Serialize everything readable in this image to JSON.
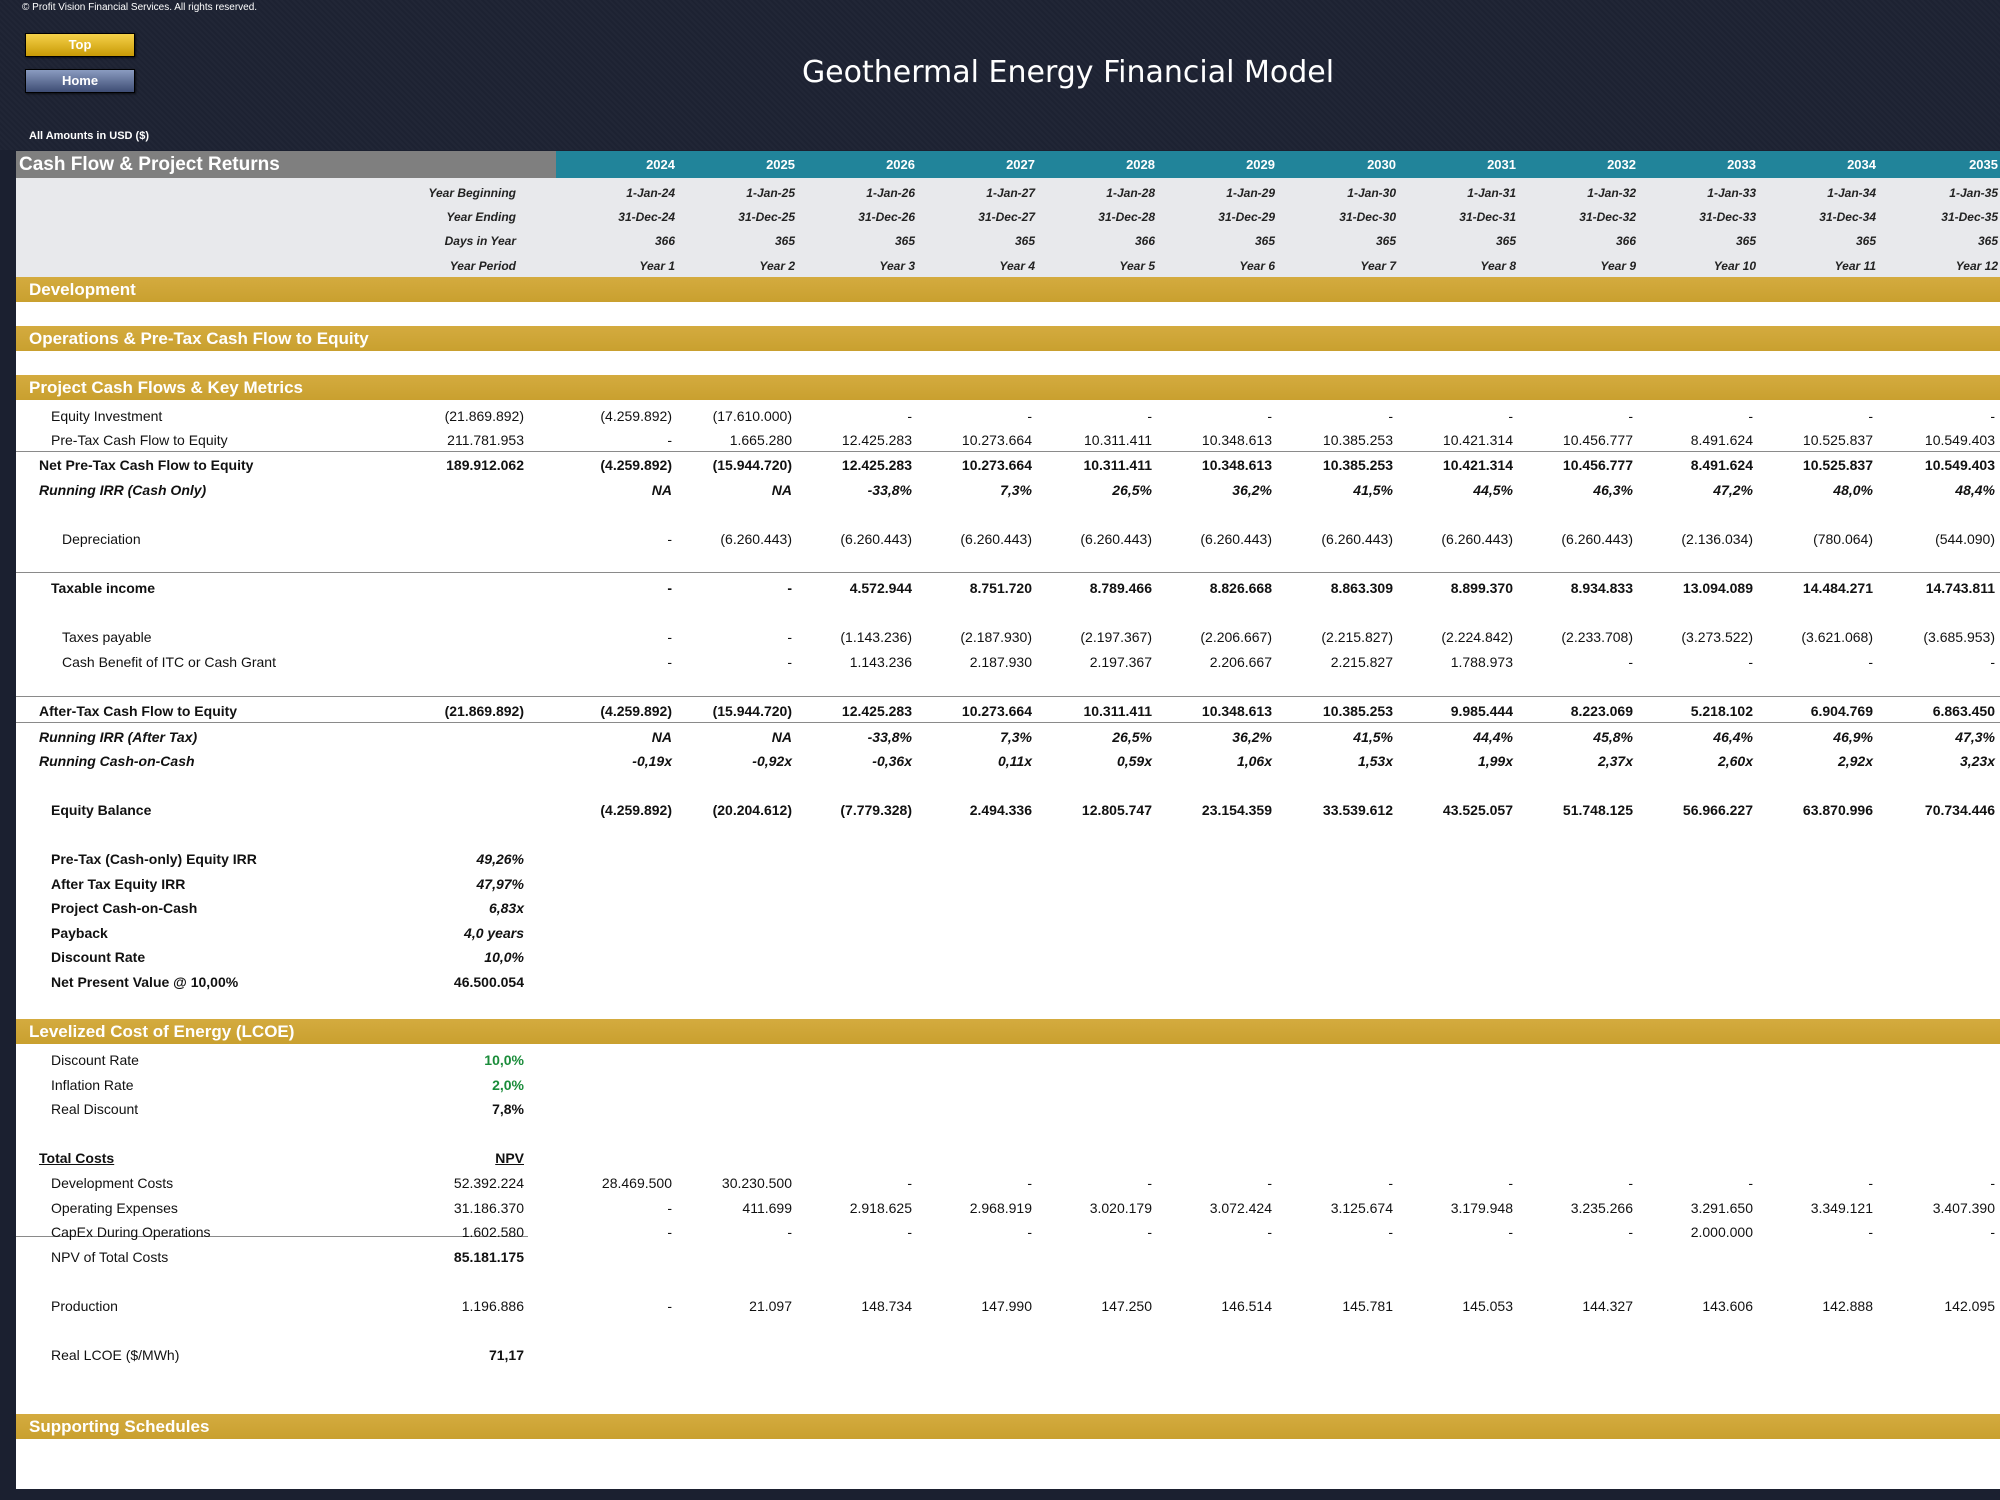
{
  "copyright": "© Profit Vision Financial Services. All rights reserved.",
  "nav": {
    "top_label": "Top",
    "home_label": "Home"
  },
  "title": "Geothermal Energy Financial Model",
  "amounts_note": "All Amounts in  USD ($)",
  "header": {
    "title": "Cash Flow & Project Returns",
    "years": [
      "2024",
      "2025",
      "2026",
      "2027",
      "2028",
      "2029",
      "2030",
      "2031",
      "2032",
      "2033",
      "2034",
      "2035"
    ],
    "date_labels": {
      "begin": "Year Beginning",
      "end": "Year Ending",
      "days": "Days in Year",
      "period": "Year Period"
    },
    "year_beginning": [
      "1-Jan-24",
      "1-Jan-25",
      "1-Jan-26",
      "1-Jan-27",
      "1-Jan-28",
      "1-Jan-29",
      "1-Jan-30",
      "1-Jan-31",
      "1-Jan-32",
      "1-Jan-33",
      "1-Jan-34",
      "1-Jan-35"
    ],
    "year_ending": [
      "31-Dec-24",
      "31-Dec-25",
      "31-Dec-26",
      "31-Dec-27",
      "31-Dec-28",
      "31-Dec-29",
      "31-Dec-30",
      "31-Dec-31",
      "31-Dec-32",
      "31-Dec-33",
      "31-Dec-34",
      "31-Dec-35"
    ],
    "days_in_year": [
      "366",
      "365",
      "365",
      "365",
      "366",
      "365",
      "365",
      "365",
      "366",
      "365",
      "365",
      "365"
    ],
    "year_period": [
      "Year 1",
      "Year 2",
      "Year 3",
      "Year 4",
      "Year 5",
      "Year 6",
      "Year 7",
      "Year 8",
      "Year 9",
      "Year 10",
      "Year 11",
      "Year 12"
    ]
  },
  "sections": {
    "development": "Development",
    "operations": "Operations & Pre-Tax Cash Flow to Equity",
    "project_cash_flows": "Project Cash Flows & Key Metrics",
    "lcoe": "Levelized Cost of Energy (LCOE)",
    "supporting": "Supporting Schedules"
  },
  "rows": {
    "equity_investment": {
      "label": "Equity Investment",
      "total": "(21.869.892)",
      "values": [
        "(4.259.892)",
        "(17.610.000)",
        "-",
        "-",
        "-",
        "-",
        "-",
        "-",
        "-",
        "-",
        "-",
        "-"
      ]
    },
    "pretax_cf": {
      "label": "Pre-Tax Cash Flow to Equity",
      "total": "211.781.953",
      "values": [
        "-",
        "1.665.280",
        "12.425.283",
        "10.273.664",
        "10.311.411",
        "10.348.613",
        "10.385.253",
        "10.421.314",
        "10.456.777",
        "8.491.624",
        "10.525.837",
        "10.549.403"
      ]
    },
    "net_pretax_cf": {
      "label": "Net Pre-Tax Cash Flow to Equity",
      "total": "189.912.062",
      "values": [
        "(4.259.892)",
        "(15.944.720)",
        "12.425.283",
        "10.273.664",
        "10.311.411",
        "10.348.613",
        "10.385.253",
        "10.421.314",
        "10.456.777",
        "8.491.624",
        "10.525.837",
        "10.549.403"
      ]
    },
    "running_irr_cash": {
      "label": "Running IRR (Cash Only)",
      "total": "",
      "values": [
        "NA",
        "NA",
        "-33,8%",
        "7,3%",
        "26,5%",
        "36,2%",
        "41,5%",
        "44,5%",
        "46,3%",
        "47,2%",
        "48,0%",
        "48,4%"
      ]
    },
    "depreciation": {
      "label": "Depreciation",
      "total": "",
      "values": [
        "-",
        "(6.260.443)",
        "(6.260.443)",
        "(6.260.443)",
        "(6.260.443)",
        "(6.260.443)",
        "(6.260.443)",
        "(6.260.443)",
        "(6.260.443)",
        "(2.136.034)",
        "(780.064)",
        "(544.090)"
      ]
    },
    "taxable_income": {
      "label": "Taxable income",
      "total": "",
      "values": [
        "-",
        "-",
        "4.572.944",
        "8.751.720",
        "8.789.466",
        "8.826.668",
        "8.863.309",
        "8.899.370",
        "8.934.833",
        "13.094.089",
        "14.484.271",
        "14.743.811"
      ]
    },
    "taxes_payable": {
      "label": "Taxes payable",
      "total": "",
      "values": [
        "-",
        "-",
        "(1.143.236)",
        "(2.187.930)",
        "(2.197.367)",
        "(2.206.667)",
        "(2.215.827)",
        "(2.224.842)",
        "(2.233.708)",
        "(3.273.522)",
        "(3.621.068)",
        "(3.685.953)"
      ]
    },
    "itc_benefit": {
      "label": "Cash Benefit of ITC or Cash Grant",
      "total": "",
      "values": [
        "-",
        "-",
        "1.143.236",
        "2.187.930",
        "2.197.367",
        "2.206.667",
        "2.215.827",
        "1.788.973",
        "-",
        "-",
        "-",
        "-"
      ]
    },
    "aftertax_cf": {
      "label": "After-Tax Cash Flow to Equity",
      "total": "(21.869.892)",
      "values": [
        "(4.259.892)",
        "(15.944.720)",
        "12.425.283",
        "10.273.664",
        "10.311.411",
        "10.348.613",
        "10.385.253",
        "9.985.444",
        "8.223.069",
        "5.218.102",
        "6.904.769",
        "6.863.450"
      ]
    },
    "running_irr_aftertax": {
      "label": "Running IRR (After Tax)",
      "total": "",
      "values": [
        "NA",
        "NA",
        "-33,8%",
        "7,3%",
        "26,5%",
        "36,2%",
        "41,5%",
        "44,4%",
        "45,8%",
        "46,4%",
        "46,9%",
        "47,3%"
      ]
    },
    "running_coc": {
      "label": "Running Cash-on-Cash",
      "total": "",
      "values": [
        "-0,19x",
        "-0,92x",
        "-0,36x",
        "0,11x",
        "0,59x",
        "1,06x",
        "1,53x",
        "1,99x",
        "2,37x",
        "2,60x",
        "2,92x",
        "3,23x"
      ]
    },
    "equity_balance": {
      "label": "Equity Balance",
      "total": "",
      "values": [
        "(4.259.892)",
        "(20.204.612)",
        "(7.779.328)",
        "2.494.336",
        "12.805.747",
        "23.154.359",
        "33.539.612",
        "43.525.057",
        "51.748.125",
        "56.966.227",
        "63.870.996",
        "70.734.446"
      ]
    }
  },
  "metrics": [
    {
      "label": "Pre-Tax (Cash-only) Equity IRR",
      "value": "49,26%"
    },
    {
      "label": "After Tax Equity IRR",
      "value": "47,97%"
    },
    {
      "label": "Project Cash-on-Cash",
      "value": "6,83x"
    },
    {
      "label": "Payback",
      "value": "4,0 years"
    },
    {
      "label": "Discount Rate",
      "value": "10,0%"
    },
    {
      "label": "Net Present Value @ 10,00%",
      "value": "46.500.054"
    }
  ],
  "lcoe": {
    "discount_rate": {
      "label": "Discount Rate",
      "value": "10,0%"
    },
    "inflation_rate": {
      "label": "Inflation Rate",
      "value": "2,0%"
    },
    "real_discount": {
      "label": "Real Discount",
      "value": "7,8%"
    },
    "total_costs_label": "Total Costs",
    "npv_label": "NPV",
    "development_costs": {
      "label": "Development Costs",
      "total": "52.392.224",
      "values": [
        "28.469.500",
        "30.230.500",
        "-",
        "-",
        "-",
        "-",
        "-",
        "-",
        "-",
        "-",
        "-",
        "-"
      ]
    },
    "operating_expenses": {
      "label": "Operating Expenses",
      "total": "31.186.370",
      "values": [
        "-",
        "411.699",
        "2.918.625",
        "2.968.919",
        "3.020.179",
        "3.072.424",
        "3.125.674",
        "3.179.948",
        "3.235.266",
        "3.291.650",
        "3.349.121",
        "3.407.390"
      ]
    },
    "capex_ops": {
      "label": "CapEx During Operations",
      "total": "1.602.580",
      "values": [
        "-",
        "-",
        "-",
        "-",
        "-",
        "-",
        "-",
        "-",
        "-",
        "2.000.000",
        "-",
        "-"
      ]
    },
    "npv_total_costs": {
      "label": "NPV of Total Costs",
      "value": "85.181.175"
    },
    "production": {
      "label": "Production",
      "total": "1.196.886",
      "values": [
        "-",
        "21.097",
        "148.734",
        "147.990",
        "147.250",
        "146.514",
        "145.781",
        "145.053",
        "144.327",
        "143.606",
        "142.888",
        "142.095"
      ]
    },
    "real_lcoe": {
      "label": "Real LCOE  ($/MWh)",
      "value": "71,17"
    }
  }
}
